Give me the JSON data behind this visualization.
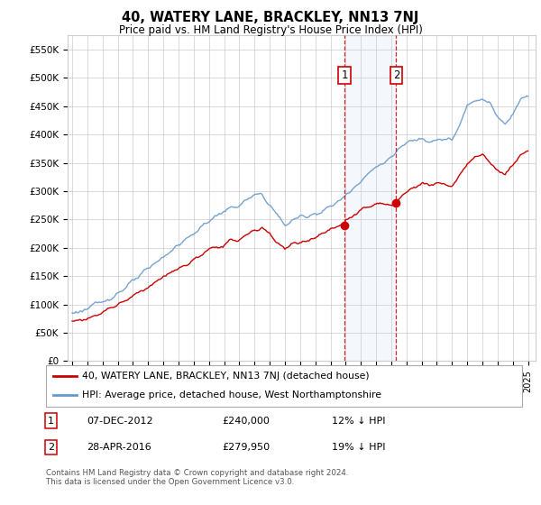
{
  "title": "40, WATERY LANE, BRACKLEY, NN13 7NJ",
  "subtitle": "Price paid vs. HM Land Registry's House Price Index (HPI)",
  "ylabel_ticks": [
    "£0",
    "£50K",
    "£100K",
    "£150K",
    "£200K",
    "£250K",
    "£300K",
    "£350K",
    "£400K",
    "£450K",
    "£500K",
    "£550K"
  ],
  "ylabel_values": [
    0,
    50000,
    100000,
    150000,
    200000,
    250000,
    300000,
    350000,
    400000,
    450000,
    500000,
    550000
  ],
  "ylim": [
    0,
    575000
  ],
  "hpi_color": "#6699cc",
  "price_color": "#cc0000",
  "transaction1_date": 2012.92,
  "transaction1_price": 240000,
  "transaction2_date": 2016.33,
  "transaction2_price": 279950,
  "legend_label1": "40, WATERY LANE, BRACKLEY, NN13 7NJ (detached house)",
  "legend_label2": "HPI: Average price, detached house, West Northamptonshire",
  "footer": "Contains HM Land Registry data © Crown copyright and database right 2024.\nThis data is licensed under the Open Government Licence v3.0.",
  "background_color": "#ffffff",
  "grid_color": "#cccccc",
  "shade_color": "#ddeeff",
  "hpi_waypoints_x": [
    1995,
    1996,
    1997,
    1998,
    1999,
    2000,
    2001,
    2002,
    2003,
    2004,
    2005,
    2006,
    2007,
    2007.5,
    2008,
    2008.5,
    2009,
    2009.5,
    2010,
    2011,
    2012,
    2013,
    2014,
    2015,
    2016,
    2017,
    2018,
    2018.5,
    2019,
    2020,
    2020.5,
    2021,
    2021.5,
    2022,
    2022.5,
    2023,
    2023.5,
    2024,
    2024.5,
    2025
  ],
  "hpi_waypoints_y": [
    85000,
    92000,
    105000,
    120000,
    140000,
    162000,
    185000,
    205000,
    225000,
    248000,
    265000,
    275000,
    292000,
    295000,
    275000,
    258000,
    240000,
    248000,
    255000,
    260000,
    272000,
    292000,
    320000,
    342000,
    360000,
    385000,
    395000,
    390000,
    392000,
    390000,
    415000,
    450000,
    460000,
    465000,
    455000,
    430000,
    420000,
    435000,
    465000,
    470000
  ],
  "red_waypoints_x": [
    1995,
    1996,
    1997,
    1998,
    1999,
    2000,
    2001,
    2002,
    2003,
    2004,
    2005,
    2006,
    2007,
    2007.5,
    2008,
    2008.5,
    2009,
    2009.5,
    2010,
    2011,
    2012,
    2012.92,
    2013,
    2014,
    2015,
    2016,
    2016.33,
    2017,
    2018,
    2018.5,
    2019,
    2020,
    2020.5,
    2021,
    2021.5,
    2022,
    2022.5,
    2023,
    2023.5,
    2024,
    2024.5,
    2025
  ],
  "red_waypoints_y": [
    70000,
    75000,
    87000,
    100000,
    115000,
    132000,
    148000,
    163000,
    178000,
    195000,
    207000,
    215000,
    230000,
    235000,
    225000,
    210000,
    198000,
    205000,
    210000,
    218000,
    232000,
    240000,
    248000,
    265000,
    278000,
    274000,
    279950,
    300000,
    315000,
    310000,
    315000,
    310000,
    325000,
    348000,
    358000,
    365000,
    352000,
    335000,
    328000,
    345000,
    365000,
    370000
  ]
}
